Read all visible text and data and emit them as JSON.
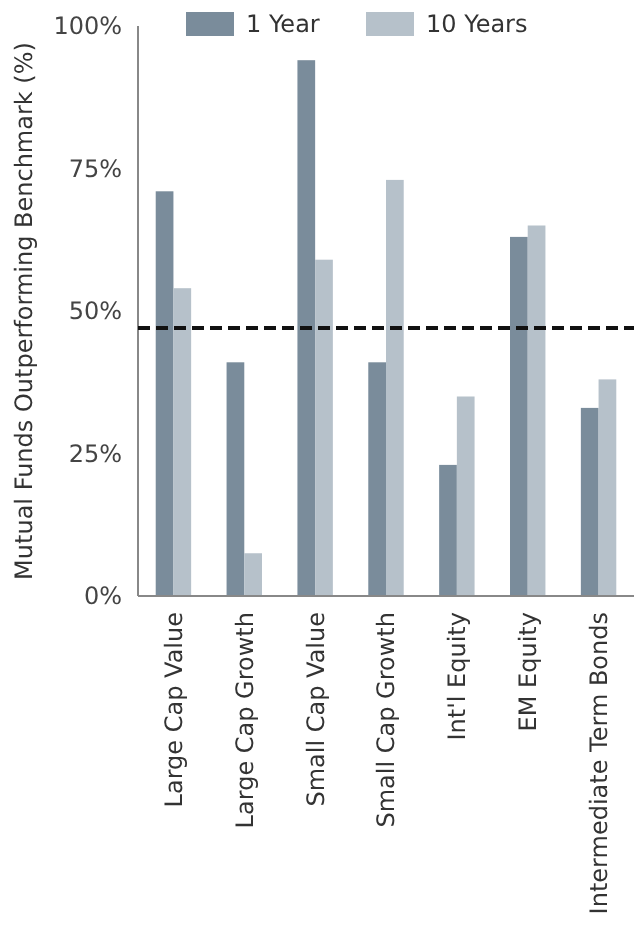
{
  "chart_data": {
    "type": "bar",
    "ylabel": "Mutual Funds Outperforming Benchmark (%)",
    "categories": [
      "Large Cap Value",
      "Large Cap Growth",
      "Small Cap Value",
      "Small Cap Growth",
      "Int'l  Equity",
      "EM Equity",
      "Intermediate Term Bonds"
    ],
    "series": [
      {
        "name": "1 Year",
        "color": "#7a8c9b",
        "values": [
          71,
          41,
          94,
          41,
          23,
          63,
          33
        ]
      },
      {
        "name": "10 Years",
        "color": "#b6c1ca",
        "values": [
          54,
          7.5,
          59,
          73,
          35,
          65,
          38
        ]
      }
    ],
    "ylim": [
      0,
      100
    ],
    "yticks": [
      {
        "value": 0,
        "label": "0%"
      },
      {
        "value": 25,
        "label": "25%"
      },
      {
        "value": 50,
        "label": "50%"
      },
      {
        "value": 75,
        "label": "75%"
      },
      {
        "value": 100,
        "label": "100%"
      }
    ],
    "ref_lines": [
      {
        "axis": "y",
        "value": 47,
        "color": "#111111",
        "line_style": "dashed"
      }
    ],
    "legend": "top",
    "grid": false
  }
}
